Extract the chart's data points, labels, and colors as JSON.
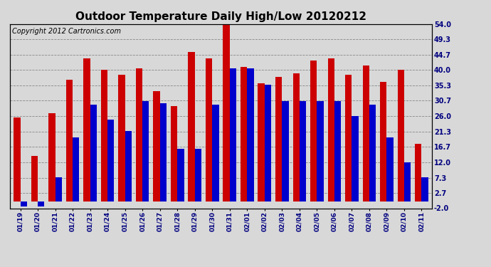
{
  "title": "Outdoor Temperature Daily High/Low 20120212",
  "copyright": "Copyright 2012 Cartronics.com",
  "dates": [
    "01/19",
    "01/20",
    "01/21",
    "01/22",
    "01/23",
    "01/24",
    "01/25",
    "01/26",
    "01/27",
    "01/28",
    "01/29",
    "01/30",
    "01/31",
    "02/01",
    "02/02",
    "02/03",
    "02/04",
    "02/05",
    "02/06",
    "02/07",
    "02/08",
    "02/09",
    "02/10",
    "02/11"
  ],
  "highs": [
    25.5,
    14.0,
    27.0,
    37.0,
    43.5,
    40.0,
    38.5,
    40.5,
    33.5,
    29.0,
    45.5,
    43.5,
    54.0,
    41.0,
    36.0,
    38.0,
    39.0,
    43.0,
    43.5,
    38.5,
    41.5,
    36.5,
    40.0,
    17.5
  ],
  "lows": [
    -1.5,
    -1.5,
    7.5,
    19.5,
    29.5,
    25.0,
    21.5,
    30.5,
    30.0,
    16.0,
    16.0,
    29.5,
    40.5,
    40.5,
    35.5,
    30.5,
    30.5,
    30.5,
    30.5,
    26.0,
    29.5,
    19.5,
    12.0,
    7.5
  ],
  "high_color": "#cc0000",
  "low_color": "#0000cc",
  "ylim": [
    -2.0,
    54.0
  ],
  "yticks": [
    54.0,
    49.3,
    44.7,
    40.0,
    35.3,
    30.7,
    26.0,
    21.3,
    16.7,
    12.0,
    7.3,
    2.7,
    -2.0
  ],
  "bg_color": "#d8d8d8",
  "plot_bg": "#d8d8d8",
  "title_fontsize": 11,
  "copyright_fontsize": 7,
  "bar_width": 0.38,
  "grid_color": "#888888"
}
